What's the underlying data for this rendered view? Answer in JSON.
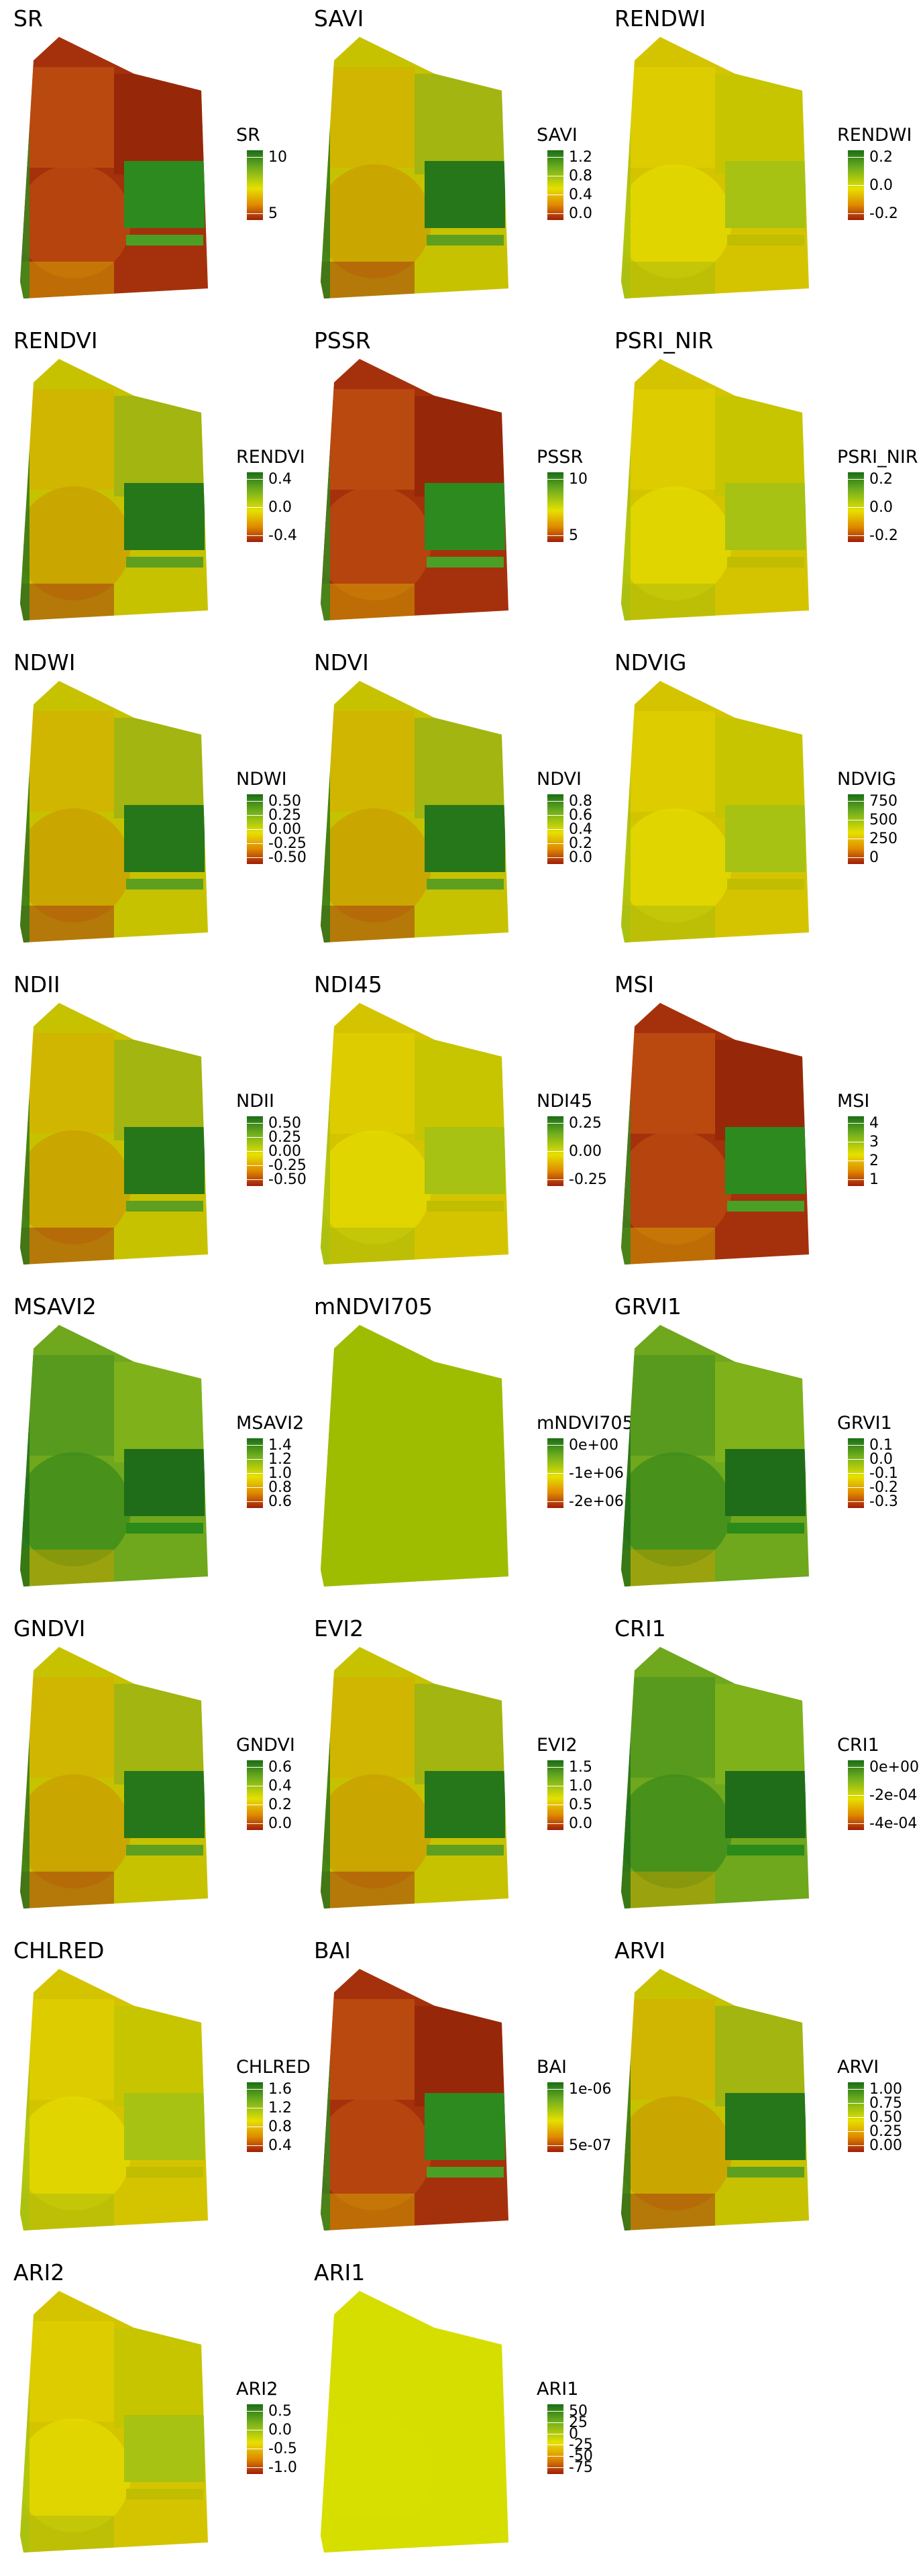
{
  "panels": [
    {
      "title": "SR",
      "legend": "SR",
      "ticks": [
        "10",
        "5"
      ],
      "style": "red"
    },
    {
      "title": "SAVI",
      "legend": "SAVI",
      "ticks": [
        "1.2",
        "0.8",
        "0.4",
        "0.0"
      ],
      "style": "mixed"
    },
    {
      "title": "RENDWI",
      "legend": "RENDWI",
      "ticks": [
        "0.2",
        "0.0",
        "-0.2"
      ],
      "style": "yellow"
    },
    {
      "title": "RENDVI",
      "legend": "RENDVI",
      "ticks": [
        "0.4",
        "0.0",
        "-0.4"
      ],
      "style": "mixed"
    },
    {
      "title": "PSSR",
      "legend": "PSSR",
      "ticks": [
        "10",
        "5"
      ],
      "style": "red"
    },
    {
      "title": "PSRI_NIR",
      "legend": "PSRI_NIR",
      "ticks": [
        "0.2",
        "0.0",
        "-0.2"
      ],
      "style": "yellow"
    },
    {
      "title": "NDWI",
      "legend": "NDWI",
      "ticks": [
        "0.50",
        "0.25",
        "0.00",
        "-0.25",
        "-0.50"
      ],
      "style": "mixed"
    },
    {
      "title": "NDVI",
      "legend": "NDVI",
      "ticks": [
        "0.8",
        "0.6",
        "0.4",
        "0.2",
        "0.0"
      ],
      "style": "mixed"
    },
    {
      "title": "NDVIG",
      "legend": "NDVIG",
      "ticks": [
        "750",
        "500",
        "250",
        "0"
      ],
      "style": "yellow"
    },
    {
      "title": "NDII",
      "legend": "NDII",
      "ticks": [
        "0.50",
        "0.25",
        "0.00",
        "-0.25",
        "-0.50"
      ],
      "style": "mixed"
    },
    {
      "title": "NDI45",
      "legend": "NDI45",
      "ticks": [
        "0.25",
        "0.00",
        "-0.25"
      ],
      "style": "yellow"
    },
    {
      "title": "MSI",
      "legend": "MSI",
      "ticks": [
        "4",
        "3",
        "2",
        "1"
      ],
      "style": "red"
    },
    {
      "title": "MSAVI2",
      "legend": "MSAVI2",
      "ticks": [
        "1.4",
        "1.2",
        "1.0",
        "0.8",
        "0.6"
      ],
      "style": "green"
    },
    {
      "title": "mNDVI705",
      "legend": "mNDVI705",
      "ticks": [
        "0e+00",
        "-1e+06",
        "-2e+06"
      ],
      "style": "flat"
    },
    {
      "title": "GRVI1",
      "legend": "GRVI1",
      "ticks": [
        "0.1",
        "0.0",
        "-0.1",
        "-0.2",
        "-0.3"
      ],
      "style": "green"
    },
    {
      "title": "GNDVI",
      "legend": "GNDVI",
      "ticks": [
        "0.6",
        "0.4",
        "0.2",
        "0.0"
      ],
      "style": "mixed"
    },
    {
      "title": "EVI2",
      "legend": "EVI2",
      "ticks": [
        "1.5",
        "1.0",
        "0.5",
        "0.0"
      ],
      "style": "mixed"
    },
    {
      "title": "CRI1",
      "legend": "CRI1",
      "ticks": [
        "0e+00",
        "-2e-04",
        "-4e-04"
      ],
      "style": "green"
    },
    {
      "title": "CHLRED",
      "legend": "CHLRED",
      "ticks": [
        "1.6",
        "1.2",
        "0.8",
        "0.4"
      ],
      "style": "yellow"
    },
    {
      "title": "BAI",
      "legend": "BAI",
      "ticks": [
        "1e-06",
        "5e-07"
      ],
      "style": "red"
    },
    {
      "title": "ARVI",
      "legend": "ARVI",
      "ticks": [
        "1.00",
        "0.75",
        "0.50",
        "0.25",
        "0.00"
      ],
      "style": "mixed"
    },
    {
      "title": "ARI2",
      "legend": "ARI2",
      "ticks": [
        "0.5",
        "0.0",
        "-0.5",
        "-1.0"
      ],
      "style": "yellow"
    },
    {
      "title": "ARI1",
      "legend": "ARI1",
      "ticks": [
        "50",
        "25",
        "0",
        "-25",
        "-50",
        "-75"
      ],
      "style": "flat2"
    }
  ]
}
